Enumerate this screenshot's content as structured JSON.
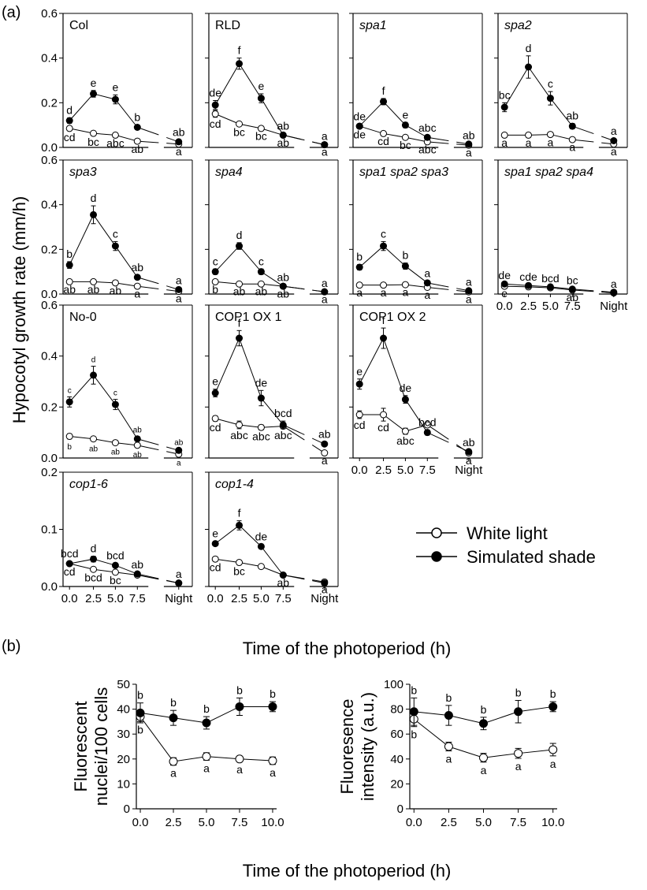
{
  "figure": {
    "panel_a": "(a)",
    "panel_b": "(b)",
    "ylabel_a": "Hypocotyl growth rate (mm/h)",
    "xlabel_a": "Time of the photoperiod (h)",
    "xlabel_b": "Time of the photoperiod (h)",
    "legend": {
      "white": "White light",
      "shade": "Simulated shade"
    },
    "colors": {
      "white_fill": "#ffffff",
      "shade_fill": "#000000",
      "line": "#000000"
    }
  },
  "chart_data": [
    {
      "type": "line",
      "title": "Col",
      "italic": false,
      "row": 0,
      "col": 0,
      "ylim": [
        0,
        0.6
      ],
      "yticks": [
        "0.0",
        "0.2",
        "0.4",
        "0.6"
      ],
      "show_y": true,
      "xticks": [],
      "series": [
        {
          "name": "White light",
          "values": [
            0.085,
            0.063,
            0.055,
            0.028,
            0.015
          ],
          "errors": [
            0.01,
            0.01,
            0.008,
            0.006,
            0.005
          ],
          "labels": [
            "cd",
            "bc",
            "abc",
            "ab",
            "a"
          ]
        },
        {
          "name": "Simulated shade",
          "values": [
            0.12,
            0.24,
            0.215,
            0.09,
            0.025
          ],
          "errors": [
            0.012,
            0.015,
            0.02,
            0.01,
            0.008
          ],
          "labels": [
            "d",
            "e",
            "e",
            "b",
            "ab"
          ]
        }
      ]
    },
    {
      "type": "line",
      "title": "RLD",
      "italic": false,
      "row": 0,
      "col": 1,
      "ylim": [
        0,
        0.6
      ],
      "yticks": [],
      "show_y": false,
      "xticks": [],
      "series": [
        {
          "name": "White light",
          "values": [
            0.15,
            0.105,
            0.085,
            0.055,
            0.012
          ],
          "errors": [
            0.015,
            0.008,
            0.006,
            0.006,
            0.004
          ],
          "labels": [
            "cd",
            "bc",
            "bc",
            "ab",
            "a"
          ]
        },
        {
          "name": "Simulated shade",
          "values": [
            0.19,
            0.375,
            0.22,
            0.055,
            0.012
          ],
          "errors": [
            0.02,
            0.025,
            0.02,
            0.006,
            0.004
          ],
          "labels": [
            "de",
            "f",
            "e",
            "ab",
            "a"
          ]
        }
      ]
    },
    {
      "type": "line",
      "title": "spa1",
      "italic": true,
      "row": 0,
      "col": 2,
      "ylim": [
        0,
        0.6
      ],
      "yticks": [],
      "show_y": false,
      "xticks": [],
      "series": [
        {
          "name": "White light",
          "values": [
            0.095,
            0.062,
            0.045,
            0.025,
            0.01
          ],
          "errors": [
            0.008,
            0.006,
            0.006,
            0.005,
            0.004
          ],
          "labels": [
            "de",
            "cd",
            "bc",
            "abc",
            "a"
          ]
        },
        {
          "name": "Simulated shade",
          "values": [
            0.095,
            0.205,
            0.1,
            0.045,
            0.015
          ],
          "errors": [
            0.01,
            0.014,
            0.012,
            0.008,
            0.005
          ],
          "labels": [
            "de",
            "f",
            "e",
            "abc",
            "ab"
          ]
        }
      ]
    },
    {
      "type": "line",
      "title": "spa2",
      "italic": true,
      "row": 0,
      "col": 3,
      "ylim": [
        0,
        0.6
      ],
      "yticks": [],
      "show_y": false,
      "xticks": [],
      "series": [
        {
          "name": "White light",
          "values": [
            0.055,
            0.055,
            0.058,
            0.035,
            0.015
          ],
          "errors": [
            0.006,
            0.006,
            0.006,
            0.005,
            0.004
          ],
          "labels": [
            "a",
            "a",
            "a",
            "a",
            "a"
          ]
        },
        {
          "name": "Simulated shade",
          "values": [
            0.18,
            0.36,
            0.22,
            0.095,
            0.03
          ],
          "errors": [
            0.02,
            0.05,
            0.03,
            0.012,
            0.008
          ],
          "labels": [
            "bc",
            "d",
            "c",
            "ab",
            "a"
          ]
        }
      ]
    },
    {
      "type": "line",
      "title": "spa3",
      "italic": true,
      "row": 1,
      "col": 0,
      "ylim": [
        0,
        0.6
      ],
      "yticks": [
        "0.0",
        "0.2",
        "0.4",
        "0.6"
      ],
      "show_y": true,
      "xticks": [],
      "series": [
        {
          "name": "White light",
          "values": [
            0.055,
            0.055,
            0.05,
            0.035,
            0.012
          ],
          "errors": [
            0.006,
            0.006,
            0.005,
            0.005,
            0.004
          ],
          "labels": [
            "ab",
            "ab",
            "ab",
            "a",
            "a"
          ]
        },
        {
          "name": "Simulated shade",
          "values": [
            0.13,
            0.355,
            0.215,
            0.075,
            0.02
          ],
          "errors": [
            0.015,
            0.04,
            0.02,
            0.01,
            0.006
          ],
          "labels": [
            "b",
            "d",
            "c",
            "ab",
            "a"
          ]
        }
      ]
    },
    {
      "type": "line",
      "title": "spa4",
      "italic": true,
      "row": 1,
      "col": 1,
      "ylim": [
        0,
        0.6
      ],
      "yticks": [],
      "show_y": false,
      "xticks": [],
      "series": [
        {
          "name": "White light",
          "values": [
            0.055,
            0.045,
            0.045,
            0.035,
            0.01
          ],
          "errors": [
            0.006,
            0.005,
            0.005,
            0.005,
            0.004
          ],
          "labels": [
            "b",
            "ab",
            "ab",
            "ab",
            "a"
          ]
        },
        {
          "name": "Simulated shade",
          "values": [
            0.1,
            0.215,
            0.1,
            0.035,
            0.01
          ],
          "errors": [
            0.012,
            0.015,
            0.012,
            0.006,
            0.004
          ],
          "labels": [
            "c",
            "d",
            "c",
            "ab",
            "a"
          ]
        }
      ]
    },
    {
      "type": "line",
      "title": "spa1 spa2 spa3",
      "italic": true,
      "row": 1,
      "col": 2,
      "ylim": [
        0,
        0.6
      ],
      "yticks": [],
      "show_y": false,
      "xticks": [],
      "series": [
        {
          "name": "White light",
          "values": [
            0.04,
            0.04,
            0.042,
            0.03,
            0.01
          ],
          "errors": [
            0.005,
            0.005,
            0.005,
            0.005,
            0.004
          ],
          "labels": [
            "a",
            "a",
            "a",
            "a",
            "a"
          ]
        },
        {
          "name": "Simulated shade",
          "values": [
            0.12,
            0.215,
            0.125,
            0.05,
            0.015
          ],
          "errors": [
            0.012,
            0.02,
            0.014,
            0.008,
            0.005
          ],
          "labels": [
            "b",
            "c",
            "b",
            "a",
            "a"
          ]
        }
      ]
    },
    {
      "type": "line",
      "title": "spa1 spa2 spa4",
      "italic": true,
      "row": 1,
      "col": 3,
      "ylim": [
        0,
        0.6
      ],
      "yticks": [],
      "show_y": false,
      "xticks": [
        "0.0",
        "2.5",
        "5.0",
        "7.5",
        "Night"
      ],
      "series": [
        {
          "name": "White light",
          "values": [
            0.035,
            0.032,
            0.028,
            0.018,
            0.005
          ],
          "errors": [
            0.004,
            0.004,
            0.004,
            0.003,
            0.002
          ],
          "labels": [
            "e",
            "",
            "",
            "ab",
            ""
          ]
        },
        {
          "name": "Simulated shade",
          "values": [
            0.045,
            0.038,
            0.032,
            0.022,
            0.008
          ],
          "errors": [
            0.005,
            0.004,
            0.004,
            0.004,
            0.002
          ],
          "labels": [
            "de",
            "cde",
            "bcd",
            "bc",
            "a"
          ]
        }
      ]
    },
    {
      "type": "line",
      "title": "No-0",
      "italic": false,
      "row": 2,
      "col": 0,
      "ylim": [
        0,
        0.6
      ],
      "yticks": [
        "0.0",
        "0.2",
        "0.4",
        "0.6"
      ],
      "show_y": true,
      "xticks": [],
      "small_labels": true,
      "series": [
        {
          "name": "White light",
          "values": [
            0.085,
            0.075,
            0.06,
            0.05,
            0.015
          ],
          "errors": [
            0.01,
            0.008,
            0.006,
            0.006,
            0.004
          ],
          "labels": [
            "b",
            "ab",
            "ab",
            "ab",
            "a"
          ]
        },
        {
          "name": "Simulated shade",
          "values": [
            0.22,
            0.325,
            0.21,
            0.075,
            0.03
          ],
          "errors": [
            0.02,
            0.035,
            0.02,
            0.01,
            0.006
          ],
          "labels": [
            "c",
            "d",
            "c",
            "ab",
            "ab"
          ]
        }
      ]
    },
    {
      "type": "line",
      "title": "COP1 OX 1",
      "italic": false,
      "row": 2,
      "col": 1,
      "ylim": [
        0,
        0.6
      ],
      "yticks": [],
      "show_y": false,
      "xticks": [],
      "series": [
        {
          "name": "White light",
          "values": [
            0.155,
            0.13,
            0.12,
            0.125,
            0.02
          ],
          "errors": [
            0.01,
            0.015,
            0.01,
            0.01,
            0.005
          ],
          "labels": [
            "cd",
            "abc",
            "abc",
            "abc",
            "a"
          ]
        },
        {
          "name": "Simulated shade",
          "values": [
            0.255,
            0.47,
            0.235,
            0.13,
            0.055
          ],
          "errors": [
            0.015,
            0.03,
            0.03,
            0.015,
            0.008
          ],
          "labels": [
            "e",
            "f",
            "de",
            "bcd",
            "ab"
          ]
        }
      ]
    },
    {
      "type": "line",
      "title": "COP1 OX 2",
      "italic": false,
      "row": 2,
      "col": 2,
      "ylim": [
        0,
        0.6
      ],
      "yticks": [],
      "show_y": false,
      "xticks": [
        "0.0",
        "2.5",
        "5.0",
        "7.5",
        "Night"
      ],
      "series": [
        {
          "name": "White light",
          "values": [
            0.17,
            0.17,
            0.105,
            0.13,
            0.02
          ],
          "errors": [
            0.015,
            0.025,
            0.012,
            0.01,
            0.005
          ],
          "labels": [
            "cd",
            "cd",
            "abc",
            "",
            "a"
          ]
        },
        {
          "name": "Simulated shade",
          "values": [
            0.29,
            0.47,
            0.23,
            0.1,
            0.025
          ],
          "errors": [
            0.02,
            0.04,
            0.015,
            0.01,
            0.006
          ],
          "labels": [
            "e",
            "f",
            "de",
            "bcd",
            "ab"
          ]
        }
      ]
    },
    {
      "type": "line",
      "title": "cop1-6",
      "italic": true,
      "row": 3,
      "col": 0,
      "ylim": [
        0,
        0.2
      ],
      "yticks": [
        "0.0",
        "0.1",
        "0.2"
      ],
      "show_y": true,
      "xticks": [
        "0.0",
        "2.5",
        "5.0",
        "7.5",
        "Night"
      ],
      "series": [
        {
          "name": "White light",
          "values": [
            0.04,
            0.03,
            0.025,
            0.02,
            0.006
          ],
          "errors": [
            0.003,
            0.003,
            0.003,
            0.002,
            0.002
          ],
          "labels": [
            "cd",
            "bcd",
            "bc",
            "",
            ""
          ]
        },
        {
          "name": "Simulated shade",
          "values": [
            0.04,
            0.048,
            0.037,
            0.022,
            0.006
          ],
          "errors": [
            0.004,
            0.005,
            0.004,
            0.003,
            0.002
          ],
          "labels": [
            "bcd",
            "d",
            "bcd",
            "ab",
            "a"
          ]
        }
      ]
    },
    {
      "type": "line",
      "title": "cop1-4",
      "italic": true,
      "row": 3,
      "col": 1,
      "ylim": [
        0,
        0.2
      ],
      "yticks": [],
      "show_y": false,
      "xticks": [
        "0.0",
        "2.5",
        "5.0",
        "7.5",
        "Night"
      ],
      "series": [
        {
          "name": "White light",
          "values": [
            0.048,
            0.042,
            0.035,
            0.02,
            0.008
          ],
          "errors": [
            0.003,
            0.004,
            0.003,
            0.002,
            0.002
          ],
          "labels": [
            "cd",
            "bc",
            "",
            "ab",
            "a"
          ]
        },
        {
          "name": "Simulated shade",
          "values": [
            0.075,
            0.107,
            0.07,
            0.02,
            0.006
          ],
          "errors": [
            0.004,
            0.008,
            0.004,
            0.002,
            0.002
          ],
          "labels": [
            "e",
            "f",
            "de",
            "",
            ""
          ]
        }
      ]
    },
    {
      "type": "line",
      "title": "",
      "italic": false,
      "panel": "b",
      "index": 0,
      "ylabel": [
        "Fluorescent",
        "nuclei/100 cells"
      ],
      "x": [
        0,
        2.5,
        5,
        7.5,
        10
      ],
      "ylim": [
        0,
        50
      ],
      "yticks": [
        "0",
        "10",
        "20",
        "30",
        "40",
        "50"
      ],
      "xticks": [
        "0.0",
        "2.5",
        "5.0",
        "7.5",
        "10.0"
      ],
      "series": [
        {
          "name": "White light",
          "values": [
            37,
            19,
            21,
            20,
            19.3
          ],
          "errors": [
            2,
            1.5,
            1.5,
            1,
            1.5
          ],
          "labels": [
            "b",
            "a",
            "a",
            "a",
            "a"
          ]
        },
        {
          "name": "Simulated shade",
          "values": [
            38.5,
            36.5,
            34.5,
            41,
            41
          ],
          "errors": [
            4,
            3,
            2.5,
            3.5,
            2
          ],
          "labels": [
            "b",
            "b",
            "b",
            "b",
            "b"
          ]
        }
      ]
    },
    {
      "type": "line",
      "title": "",
      "italic": false,
      "panel": "b",
      "index": 1,
      "ylabel": [
        "Fluoresence",
        "intensity (a.u.)"
      ],
      "x": [
        0,
        2.5,
        5,
        7.5,
        10
      ],
      "ylim": [
        0,
        100
      ],
      "yticks": [
        "0",
        "20",
        "40",
        "60",
        "80",
        "100"
      ],
      "xticks": [
        "0.0",
        "2.5",
        "5.0",
        "7.5",
        "10.0"
      ],
      "series": [
        {
          "name": "White light",
          "values": [
            72,
            50,
            41,
            44.5,
            47.5
          ],
          "errors": [
            6,
            3.5,
            3.5,
            4,
            5
          ],
          "labels": [
            "b",
            "a",
            "a",
            "a",
            "a"
          ]
        },
        {
          "name": "Simulated shade",
          "values": [
            78,
            75,
            68.5,
            78,
            82
          ],
          "errors": [
            11,
            8,
            5,
            9,
            4
          ],
          "labels": [
            "b",
            "b",
            "b",
            "b",
            "b"
          ]
        }
      ]
    }
  ]
}
